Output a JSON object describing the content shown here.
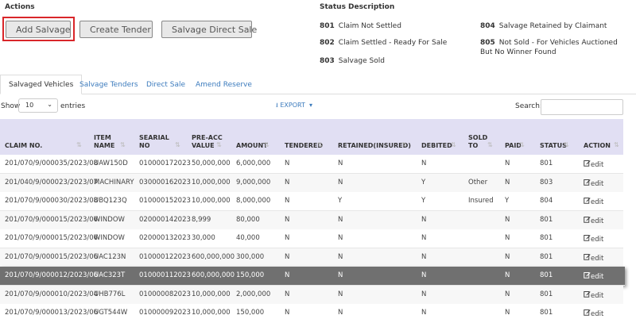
{
  "actions": {
    "title": "Actions",
    "buttons": [
      "Add Salvage",
      "Create Tender",
      "Salvage Direct Sale"
    ]
  },
  "status_description": {
    "title": "Status Description",
    "items": [
      {
        "code": "801",
        "label": "Claim Not Settled"
      },
      {
        "code": "804",
        "label": "Salvage Retained by Claimant"
      },
      {
        "code": "802",
        "label": "Claim Settled - Ready For Sale"
      },
      {
        "code": "805",
        "label": "Not Sold - For Vehicles Auctioned But No Winner Found"
      },
      {
        "code": "803",
        "label": "Salvage Sold"
      }
    ]
  },
  "tabs": [
    "Salvaged Vehicles",
    "Salvage Tenders",
    "Direct Sale",
    "Amend Reserve"
  ],
  "controls": {
    "show": "Show",
    "page_size": "10",
    "entries": "entries",
    "export": "EXPORT",
    "search": "Search:"
  },
  "table": {
    "columns": [
      "CLAIM NO.",
      "ITEM NAME",
      "SEARIAL NO",
      "PRE-ACC VALUE",
      "AMOUNT",
      "TENDERED",
      "RETAINED(INSURED)",
      "DEBITED",
      "SOLD TO",
      "PAID",
      "STATUS",
      "ACTION"
    ],
    "rows": [
      [
        "201/070/9/000035/2023/08",
        "UAW150D",
        "010000172023",
        "50,000,000",
        "6,000,000",
        "N",
        "N",
        "N",
        null,
        "N",
        "801",
        "edit"
      ],
      [
        "201/040/9/000023/2023/07",
        "MACHINARY",
        "030000162023",
        "10,000,000",
        "9,000,000",
        "N",
        "N",
        "Y",
        "Other",
        "N",
        "803",
        "edit"
      ],
      [
        "201/070/9/000030/2023/08",
        "UBQ123Q",
        "010000152023",
        "10,000,000",
        "8,000,000",
        "N",
        "Y",
        "Y",
        "Insured",
        "Y",
        "804",
        "edit"
      ],
      [
        "201/070/9/000015/2023/06",
        "WINDOW",
        "020000142023",
        "8,999",
        "80,000",
        "N",
        "N",
        "N",
        null,
        "N",
        "801",
        "edit"
      ],
      [
        "201/070/9/000015/2023/06",
        "WINDOW",
        "020000132023",
        "30,000",
        "40,000",
        "N",
        "N",
        "N",
        null,
        "N",
        "801",
        "edit"
      ],
      [
        "201/070/9/000015/2023/06",
        "UAC123N",
        "010000122023",
        "600,000,000",
        "300,000",
        "N",
        "N",
        "N",
        null,
        "N",
        "801",
        "edit"
      ],
      [
        "201/070/9/000012/2023/06",
        "UAC323T",
        "010000112023",
        "600,000,000",
        "150,000",
        "N",
        "N",
        "N",
        null,
        "N",
        "801",
        "edit"
      ],
      [
        "201/070/9/000010/2023/04",
        "UHB776L",
        "010000082023",
        "10,000,000",
        "2,000,000",
        "N",
        "N",
        "N",
        null,
        "N",
        "801",
        "edit"
      ],
      [
        "201/070/9/000013/2023/06",
        "UGT544W",
        "010000092023",
        "10,000,000",
        "150,000",
        "N",
        "N",
        "N",
        null,
        "N",
        "801",
        "edit"
      ]
    ]
  }
}
